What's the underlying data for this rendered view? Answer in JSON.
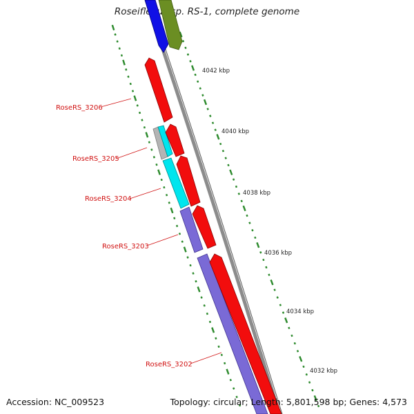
{
  "title": "Roseiflexus sp. RS-1, complete genome",
  "accession": "Accession: NC_009523",
  "summary": "Topology: circular; Length: 5,801,598 bp; Genes: 4,573",
  "colors": {
    "backbone": "#8c8c8c",
    "ticks": "#2e8b2e",
    "label": "#d01010",
    "gene_red": "#f20d0d",
    "gene_blue": "#1010e6",
    "gene_olive": "#6b8e23",
    "gene_cyan": "#00e5ee",
    "gene_gray": "#b4b4b4",
    "gene_slate": "#7a6ad6"
  },
  "scale_labels": [
    "4042 kbp",
    "4040 kbp",
    "4038 kbp",
    "4036 kbp",
    "4034 kbp",
    "4032 kbp"
  ],
  "gene_labels": [
    "RoseRS_3206",
    "RoseRS_3205",
    "RoseRS_3204",
    "RoseRS_3203",
    "RoseRS_3202"
  ],
  "genes": [
    {
      "name": "",
      "color": "blue",
      "strand": "minus"
    },
    {
      "name": "",
      "color": "olive",
      "strand": "minus"
    },
    {
      "name": "RoseRS_3206",
      "color": "red",
      "strand": "minus"
    },
    {
      "name": "RoseRS_3205",
      "color": "cyan",
      "strand": "minus"
    },
    {
      "name": "",
      "color": "gray",
      "strand": "minus"
    },
    {
      "name": "",
      "color": "red",
      "strand": "minus"
    },
    {
      "name": "RoseRS_3204",
      "color": "cyan",
      "strand": "minus"
    },
    {
      "name": "",
      "color": "red",
      "strand": "minus"
    },
    {
      "name": "RoseRS_3203",
      "color": "slate",
      "strand": "minus"
    },
    {
      "name": "",
      "color": "red",
      "strand": "minus"
    },
    {
      "name": "RoseRS_3202",
      "color": "slate",
      "strand": "minus"
    },
    {
      "name": "",
      "color": "red",
      "strand": "minus"
    }
  ]
}
